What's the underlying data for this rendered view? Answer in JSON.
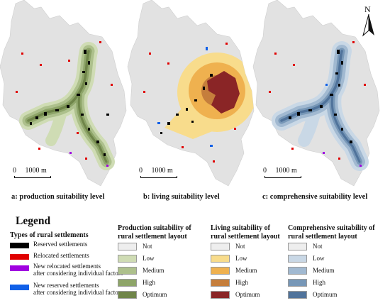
{
  "north_label": "N",
  "panels": [
    {
      "caption": "a: production suitability level",
      "scale_label": "0     1000 m"
    },
    {
      "caption": "b: living suitability level",
      "scale_label": "0     1000 m"
    },
    {
      "caption": "c: comprehensive suitability level",
      "scale_label": "0     1000 m"
    }
  ],
  "legend": {
    "title": "Legend",
    "types_title": "Types of rural settlements",
    "types": [
      {
        "label_line1": "Reserved settlements",
        "label_line2": "",
        "color": "#000000"
      },
      {
        "label_line1": "Relocated settlements",
        "label_line2": "",
        "color": "#e00000"
      },
      {
        "label_line1": "New relocated settlements",
        "label_line2": "after considering individual factors",
        "color": "#a000e0"
      },
      {
        "label_line1": "New reserved settlements",
        "label_line2": "after considering individual factors",
        "color": "#1060e8"
      }
    ],
    "columns": [
      {
        "title_line1": "Production suitability of",
        "title_line2": "rural settlement layout",
        "classes": [
          {
            "label": "Not",
            "color": "#eeeeee"
          },
          {
            "label": "Low",
            "color": "#cfdcb4"
          },
          {
            "label": "Medium",
            "color": "#adc08c"
          },
          {
            "label": "High",
            "color": "#8ea569"
          },
          {
            "label": "Optimum",
            "color": "#6f8549"
          }
        ]
      },
      {
        "title_line1": "Living suitability of",
        "title_line2": "rural settlement layout",
        "classes": [
          {
            "label": "Not",
            "color": "#eeeeee"
          },
          {
            "label": "Low",
            "color": "#f8dc8c"
          },
          {
            "label": "Medium",
            "color": "#efb14f"
          },
          {
            "label": "High",
            "color": "#c57e3c"
          },
          {
            "label": "Optimum",
            "color": "#8a2526"
          }
        ]
      },
      {
        "title_line1": "Comprehensive suitability of",
        "title_line2": "rural settlement layout",
        "classes": [
          {
            "label": "Not",
            "color": "#eeeeee"
          },
          {
            "label": "Low",
            "color": "#c9d8e6"
          },
          {
            "label": "Medium",
            "color": "#a1b9d1"
          },
          {
            "label": "High",
            "color": "#7797b7"
          },
          {
            "label": "Optimum",
            "color": "#50739b"
          }
        ]
      }
    ]
  }
}
